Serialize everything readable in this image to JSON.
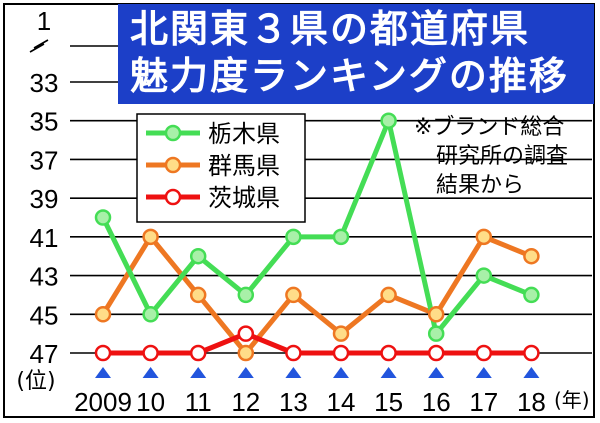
{
  "title_lines": [
    "北関東３県の都道府県",
    "魅力度ランキングの推移"
  ],
  "note_lines": [
    "※ブランド総合",
    "研究所の調査",
    "結果から"
  ],
  "chart_data": {
    "type": "line",
    "title": "北関東３県の都道府県魅力度ランキングの推移",
    "categories": [
      "2009",
      "10",
      "11",
      "12",
      "13",
      "14",
      "15",
      "16",
      "17",
      "18"
    ],
    "xlabel": "(年)",
    "ylabel": "(位)",
    "y_inverted": true,
    "y_axis_break": true,
    "y_ticks": [
      1,
      33,
      35,
      37,
      39,
      41,
      43,
      45,
      47
    ],
    "ylim": [
      33,
      47
    ],
    "grid": true,
    "legend_position": "top-left",
    "series": [
      {
        "name": "栃木県",
        "color": "#44dd55",
        "values": [
          40,
          45,
          42,
          44,
          41,
          41,
          35,
          46,
          43,
          44
        ]
      },
      {
        "name": "群馬県",
        "color": "#ee7722",
        "values": [
          45,
          41,
          44,
          47,
          44,
          46,
          44,
          45,
          41,
          42
        ]
      },
      {
        "name": "茨城県",
        "color": "#ee1111",
        "values": [
          47,
          47,
          47,
          46,
          47,
          47,
          47,
          47,
          47,
          47
        ]
      }
    ]
  }
}
